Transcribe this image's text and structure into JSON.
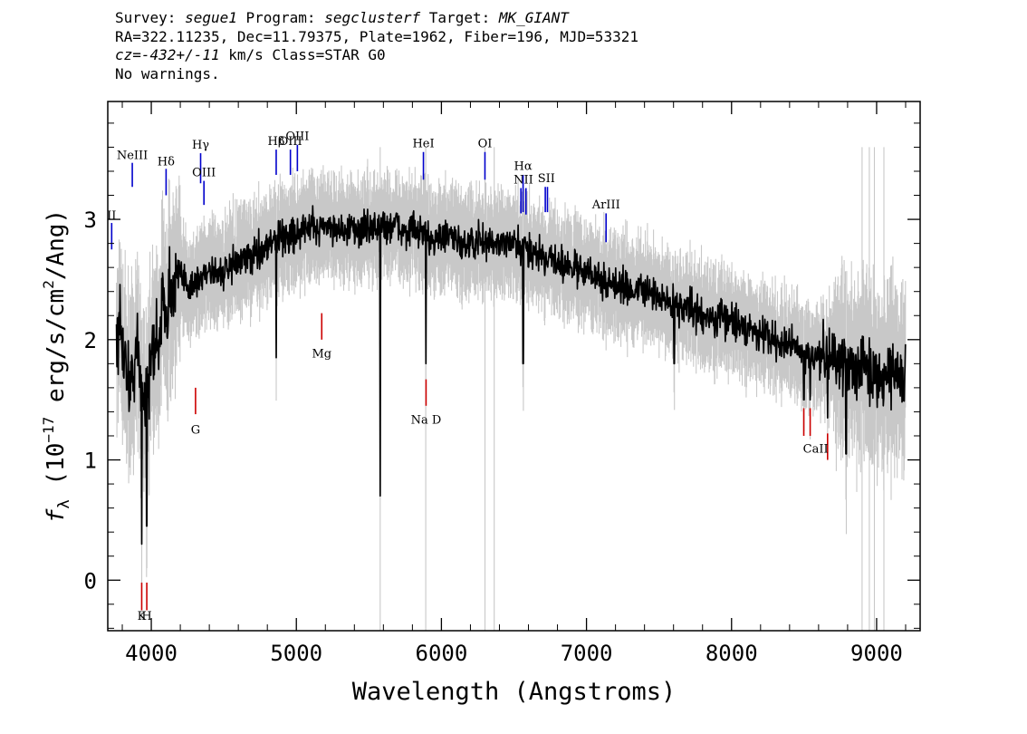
{
  "header": {
    "line1": {
      "survey_label": "Survey: ",
      "survey": "segue1",
      "program_label": " Program: ",
      "program": "segclusterf",
      "target_label": " Target: ",
      "target": "MK_GIANT"
    },
    "line2": "RA=322.11235, Dec=11.79375, Plate=1962, Fiber=196, MJD=53321",
    "line3": {
      "cz_label": "cz=",
      "cz": "-432+/-11",
      "rest": " km/s Class=STAR G0"
    },
    "line4": "No warnings."
  },
  "chart_data": {
    "type": "line",
    "xlabel": "Wavelength (Angstroms)",
    "ylabel": "f_λ (10^-17 erg/s/cm^2/Ang)",
    "ylabel_parts": {
      "f": "f",
      "lambda": "λ",
      "open": " (10",
      "exp1": "−17",
      "mid": " erg/s/cm",
      "exp2": "2",
      "close": "/Ang)"
    },
    "xlim": [
      3700,
      9300
    ],
    "ylim": [
      -0.42,
      3.98
    ],
    "x_ticks": [
      4000,
      5000,
      6000,
      7000,
      8000,
      9000
    ],
    "x_tick_labels": [
      "4000",
      "5000",
      "6000",
      "7000",
      "8000",
      "9000"
    ],
    "y_ticks": [
      0,
      1,
      2,
      3
    ],
    "y_tick_labels": [
      "0",
      "1",
      "2",
      "3"
    ],
    "colors": {
      "flux": "#000000",
      "error": "#c8c8c8",
      "emission": "#0000cc",
      "absorption": "#cc0000"
    },
    "series": [
      {
        "name": "",
        "role": "flux",
        "x": [
          3800,
          3850,
          3900,
          3950,
          4000,
          4100,
          4200,
          4300,
          4400,
          4500,
          4600,
          4700,
          4800,
          4900,
          5000,
          5200,
          5400,
          5600,
          5800,
          6000,
          6200,
          6400,
          6600,
          6800,
          7000,
          7200,
          7400,
          7600,
          7800,
          8000,
          8200,
          8400,
          8600,
          8800,
          9000,
          9200
        ],
        "y": [
          2.0,
          1.6,
          1.9,
          1.5,
          1.8,
          2.35,
          2.5,
          2.45,
          2.6,
          2.55,
          2.65,
          2.7,
          2.8,
          2.85,
          2.9,
          2.95,
          2.9,
          2.95,
          2.9,
          2.85,
          2.8,
          2.8,
          2.75,
          2.65,
          2.55,
          2.45,
          2.4,
          2.3,
          2.2,
          2.15,
          2.05,
          1.95,
          1.85,
          1.8,
          1.75,
          1.7
        ]
      }
    ],
    "features": [
      {
        "x": 5578,
        "y": 0.7
      },
      {
        "x": 3934,
        "y": 0.3
      },
      {
        "x": 3969,
        "y": 0.45
      },
      {
        "x": 4861,
        "y": 1.85
      },
      {
        "x": 5893,
        "y": 1.8
      },
      {
        "x": 6563,
        "y": 1.8
      },
      {
        "x": 7605,
        "y": 1.8
      },
      {
        "x": 8790,
        "y": 1.05
      },
      {
        "x": 8662,
        "y": 1.35
      },
      {
        "x": 8542,
        "y": 1.5
      },
      {
        "x": 8498,
        "y": 1.5
      }
    ],
    "emission_lines": [
      {
        "label": "NeIII",
        "wave": 3869,
        "y0": 3.27,
        "y1": 3.47,
        "ly": 3.5
      },
      {
        "label": "Hδ",
        "wave": 4102,
        "y0": 3.2,
        "y1": 3.42,
        "ly": 3.45
      },
      {
        "label": "Hγ",
        "wave": 4340,
        "y0": 3.3,
        "y1": 3.55,
        "ly": 3.59
      },
      {
        "label": "OIII",
        "wave": 4363,
        "y0": 3.12,
        "y1": 3.32,
        "ly": 3.36
      },
      {
        "label": "Hβ",
        "wave": 4861,
        "y0": 3.37,
        "y1": 3.58,
        "ly": 3.62
      },
      {
        "label": "OIII",
        "wave": 4959,
        "y0": 3.37,
        "y1": 3.58,
        "ly": 3.62
      },
      {
        "label": "OIII",
        "wave": 5007,
        "y0": 3.4,
        "y1": 3.62,
        "ly": 3.66
      },
      {
        "label": "HeI",
        "wave": 5876,
        "y0": 3.33,
        "y1": 3.56,
        "ly": 3.6
      },
      {
        "label": "OI",
        "wave": 6300,
        "y0": 3.33,
        "y1": 3.56,
        "ly": 3.6
      },
      {
        "label": "NII",
        "wave": 6548,
        "y0": 3.05,
        "y1": 3.26,
        "ly": 3.3
      },
      {
        "label": "Hα",
        "wave": 6563,
        "y0": 3.06,
        "y1": 3.37,
        "ly": 3.41
      },
      {
        "label": "NII",
        "wave": 6583,
        "y0": 3.04,
        "y1": 3.26,
        "ly": 3.3
      },
      {
        "label": "SII",
        "wave": 6716,
        "y0": 3.06,
        "y1": 3.27,
        "ly": 3.31
      },
      {
        "label": "SII",
        "wave": 6731,
        "y0": 3.06,
        "y1": 3.27,
        "ly": 3.31
      },
      {
        "label": "ArIII",
        "wave": 7135,
        "y0": 2.81,
        "y1": 3.05,
        "ly": 3.09
      },
      {
        "label": "II",
        "wave": 3727,
        "y0": 2.75,
        "y1": 2.97,
        "ly": 3.0
      }
    ],
    "absorption_lines": [
      {
        "label": "K",
        "wave": 3934,
        "y0": -0.25,
        "y1": -0.02,
        "ly": -0.33
      },
      {
        "label": "H",
        "wave": 3969,
        "y0": -0.25,
        "y1": -0.02,
        "ly": -0.33
      },
      {
        "label": "G",
        "wave": 4305,
        "y0": 1.38,
        "y1": 1.6,
        "ly": 1.22
      },
      {
        "label": "Mg",
        "wave": 5175,
        "y0": 2.0,
        "y1": 2.22,
        "ly": 1.85
      },
      {
        "label": "Na D",
        "wave": 5894,
        "y0": 1.45,
        "y1": 1.67,
        "ly": 1.3
      },
      {
        "label": "CaII",
        "wave": 8498,
        "y0": 1.2,
        "y1": 1.43,
        "ly": 1.06
      },
      {
        "label": "CaII",
        "wave": 8542,
        "y0": 1.2,
        "y1": 1.43,
        "ly": 1.06
      },
      {
        "label": "CaII",
        "wave": 8662,
        "y0": 1.0,
        "y1": 1.22,
        "ly": 1.06
      }
    ]
  }
}
